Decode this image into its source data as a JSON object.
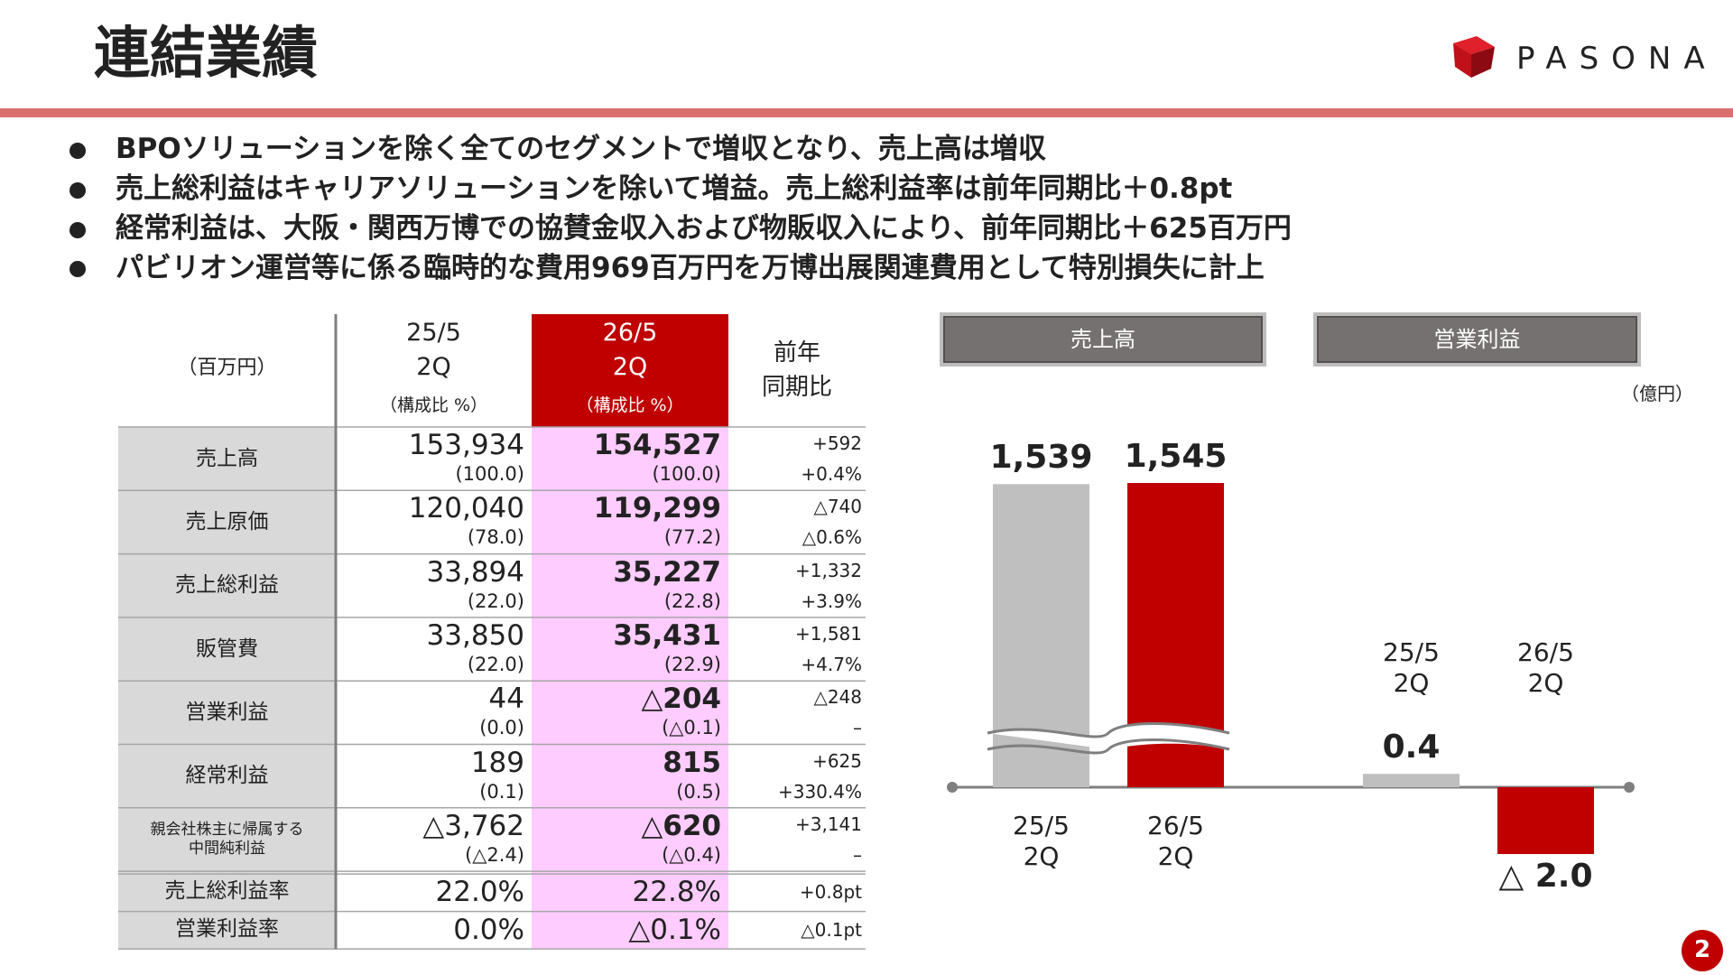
{
  "header": {
    "title": "連結業績",
    "logo": "PASONA"
  },
  "bullets": [
    "BPOソリューションを除く全てのセグメントで増収となり、売上高は増収",
    "売上総利益はキャリアソリューションを除いて増益。売上総利益率は前年同期比＋0.8pt",
    "経常利益は、大阪・関西万博での協賛金収入および物販収入により、前年同期比＋625百万円",
    "パビリオン運営等に係る臨時的な費用969百万円を万博出展関連費用として特別損失に計上"
  ],
  "table": {
    "header": {
      "unit": "（百万円）",
      "prev": "25/5\n2Q",
      "prev_sub": "（構成比 %）",
      "cur": "26/5\n2Q",
      "cur_sub": "（構成比 %）",
      "yoy": "前年\n同期比"
    },
    "rows": [
      [
        "売上高",
        "153,934",
        "(100.0)",
        "154,527",
        "(100.0)",
        "+592",
        "+0.4%"
      ],
      [
        "売上原価",
        "120,040",
        "(78.0)",
        "119,299",
        "(77.2)",
        "△740",
        "△0.6%"
      ],
      [
        "売上総利益",
        "33,894",
        "(22.0)",
        "35,227",
        "(22.8)",
        "+1,332",
        "+3.9%"
      ],
      [
        "販管費",
        "33,850",
        "(22.0)",
        "35,431",
        "(22.9)",
        "+1,581",
        "+4.7%"
      ],
      [
        "営業利益",
        "44",
        "(0.0)",
        "△204",
        "(△0.1)",
        "△248",
        "–"
      ],
      [
        "経常利益",
        "189",
        "(0.1)",
        "815",
        "(0.5)",
        "+625",
        "+330.4%"
      ],
      [
        "親会社株主に帰属する\n中間純利益",
        "△3,762",
        "(△2.4)",
        "△620",
        "(△0.4)",
        "+3,141",
        "–"
      ]
    ],
    "ratio_rows": [
      [
        "売上総利益率",
        "22.0%",
        "22.8%",
        "+0.8pt"
      ],
      [
        "営業利益率",
        "0.0%",
        "△0.1%",
        "△0.1pt"
      ]
    ]
  },
  "chart_data": [
    {
      "type": "bar",
      "title": "売上高",
      "categories": [
        "25/5\n2Q",
        "26/5\n2Q"
      ],
      "values": [
        1539,
        1545
      ],
      "value_labels": [
        "1,539",
        "1,545"
      ],
      "colors": [
        "#bfbfbf",
        "#c00000"
      ]
    },
    {
      "type": "bar",
      "title": "営業利益",
      "unit": "（億円）",
      "categories": [
        "25/5\n2Q",
        "26/5\n2Q"
      ],
      "values": [
        0.4,
        -2.0
      ],
      "value_labels": [
        "0.4",
        "△ 2.0"
      ],
      "colors": [
        "#bfbfbf",
        "#c00000"
      ]
    }
  ],
  "page_number": "2"
}
